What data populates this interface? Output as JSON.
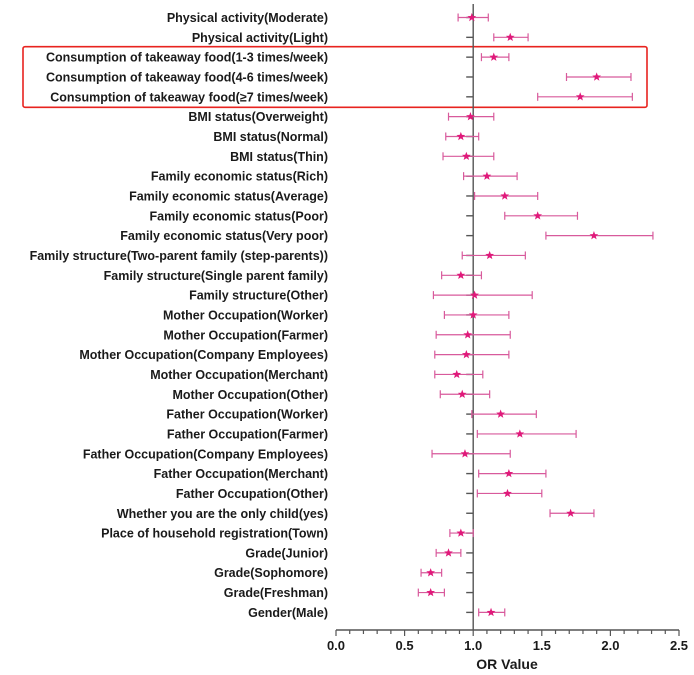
{
  "chart_data": {
    "type": "forest",
    "title": "",
    "xlabel": "OR Value",
    "ylabel": "",
    "xlim": [
      0.0,
      2.5
    ],
    "x_ticks": [
      "0.0",
      "0.5",
      "1.0",
      "1.5",
      "2.0",
      "2.5"
    ],
    "reference_line": 1.0,
    "grid": false,
    "marker": "star",
    "colors": {
      "marker": "#e0197a",
      "ci": "#d85a9c",
      "axis": "#555555",
      "highlight_box": "#e8231f",
      "text": "#1a1a1a"
    },
    "highlight": {
      "labels": [
        "Consumption of takeaway food(1-3 times/week)",
        "Consumption of takeaway food(4-6 times/week)",
        "Consumption of takeaway food(≥7 times/week)"
      ]
    },
    "rows": [
      {
        "label": "Physical activity(Moderate)",
        "or": 0.99,
        "lower": 0.89,
        "upper": 1.11
      },
      {
        "label": "Physical activity(Light)",
        "or": 1.27,
        "lower": 1.15,
        "upper": 1.4
      },
      {
        "label": "Consumption of takeaway food(1-3 times/week)",
        "or": 1.15,
        "lower": 1.06,
        "upper": 1.26
      },
      {
        "label": "Consumption of takeaway food(4-6 times/week)",
        "or": 1.9,
        "lower": 1.68,
        "upper": 2.15
      },
      {
        "label": "Consumption of takeaway food(≥7 times/week)",
        "or": 1.78,
        "lower": 1.47,
        "upper": 2.16
      },
      {
        "label": "BMI status(Overweight)",
        "or": 0.98,
        "lower": 0.82,
        "upper": 1.15
      },
      {
        "label": "BMI status(Normal)",
        "or": 0.91,
        "lower": 0.8,
        "upper": 1.04
      },
      {
        "label": "BMI status(Thin)",
        "or": 0.95,
        "lower": 0.78,
        "upper": 1.15
      },
      {
        "label": "Family economic status(Rich)",
        "or": 1.1,
        "lower": 0.93,
        "upper": 1.32
      },
      {
        "label": "Family economic status(Average)",
        "or": 1.23,
        "lower": 1.01,
        "upper": 1.47
      },
      {
        "label": "Family economic status(Poor)",
        "or": 1.47,
        "lower": 1.23,
        "upper": 1.76
      },
      {
        "label": "Family economic status(Very poor)",
        "or": 1.88,
        "lower": 1.53,
        "upper": 2.31
      },
      {
        "label": "Family structure(Two-parent family (step-parents))",
        "or": 1.12,
        "lower": 0.92,
        "upper": 1.38
      },
      {
        "label": "Family structure(Single parent family)",
        "or": 0.91,
        "lower": 0.77,
        "upper": 1.06
      },
      {
        "label": "Family structure(Other)",
        "or": 1.01,
        "lower": 0.71,
        "upper": 1.43
      },
      {
        "label": "Mother Occupation(Worker)",
        "or": 1.0,
        "lower": 0.79,
        "upper": 1.26
      },
      {
        "label": "Mother Occupation(Farmer)",
        "or": 0.96,
        "lower": 0.73,
        "upper": 1.27
      },
      {
        "label": "Mother Occupation(Company Employees)",
        "or": 0.95,
        "lower": 0.72,
        "upper": 1.26
      },
      {
        "label": "Mother Occupation(Merchant)",
        "or": 0.88,
        "lower": 0.72,
        "upper": 1.07
      },
      {
        "label": "Mother Occupation(Other)",
        "or": 0.92,
        "lower": 0.76,
        "upper": 1.12
      },
      {
        "label": "Father Occupation(Worker)",
        "or": 1.2,
        "lower": 0.99,
        "upper": 1.46
      },
      {
        "label": "Father Occupation(Farmer)",
        "or": 1.34,
        "lower": 1.03,
        "upper": 1.75
      },
      {
        "label": "Father Occupation(Company Employees)",
        "or": 0.94,
        "lower": 0.7,
        "upper": 1.27
      },
      {
        "label": "Father Occupation(Merchant)",
        "or": 1.26,
        "lower": 1.04,
        "upper": 1.53
      },
      {
        "label": "Father Occupation(Other)",
        "or": 1.25,
        "lower": 1.03,
        "upper": 1.5
      },
      {
        "label": "Whether you are the only child(yes)",
        "or": 1.71,
        "lower": 1.56,
        "upper": 1.88
      },
      {
        "label": "Place of household registration(Town)",
        "or": 0.91,
        "lower": 0.83,
        "upper": 1.0
      },
      {
        "label": "Grade(Junior)",
        "or": 0.82,
        "lower": 0.73,
        "upper": 0.91
      },
      {
        "label": "Grade(Sophomore)",
        "or": 0.69,
        "lower": 0.62,
        "upper": 0.77
      },
      {
        "label": "Grade(Freshman)",
        "or": 0.69,
        "lower": 0.6,
        "upper": 0.79
      },
      {
        "label": "Gender(Male)",
        "or": 1.13,
        "lower": 1.04,
        "upper": 1.23
      }
    ]
  }
}
